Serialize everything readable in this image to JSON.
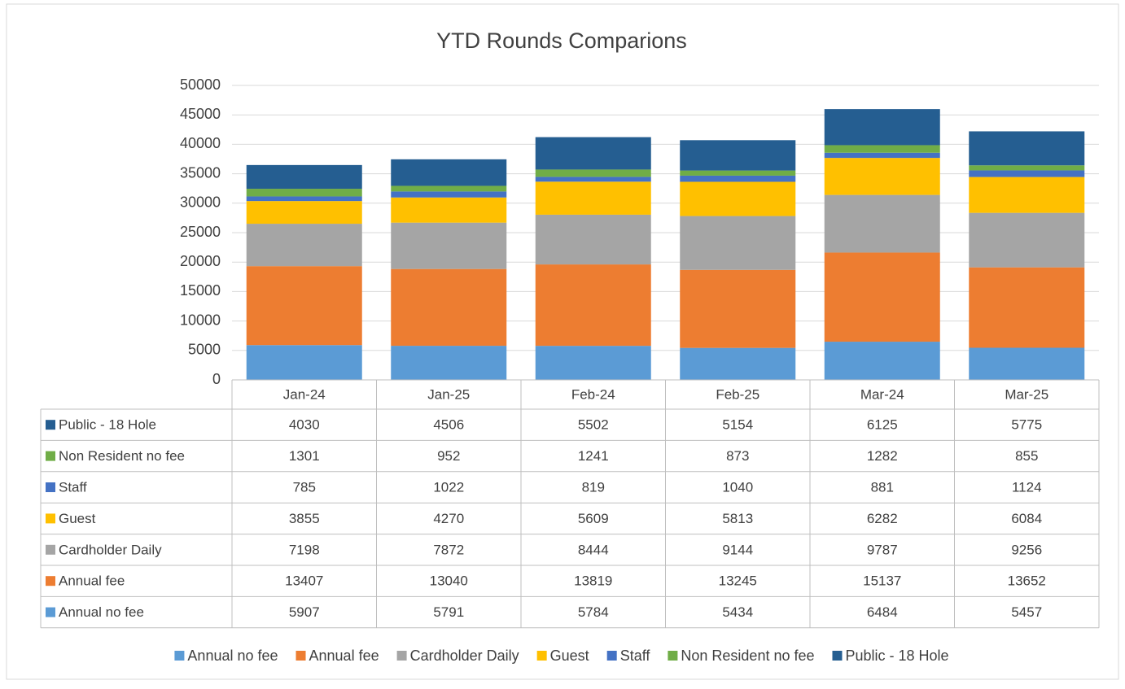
{
  "chart_data": {
    "type": "bar",
    "stacked": true,
    "title": "YTD Rounds Comparions",
    "categories": [
      "Jan-24",
      "Jan-25",
      "Feb-24",
      "Feb-25",
      "Mar-24",
      "Mar-25"
    ],
    "series": [
      {
        "name": "Annual no fee",
        "color": "#5b9bd5",
        "values": [
          5907,
          5791,
          5784,
          5434,
          6484,
          5457
        ]
      },
      {
        "name": "Annual fee",
        "color": "#ed7d31",
        "values": [
          13407,
          13040,
          13819,
          13245,
          15137,
          13652
        ]
      },
      {
        "name": "Cardholder Daily",
        "color": "#a5a5a5",
        "values": [
          7198,
          7872,
          8444,
          9144,
          9787,
          9256
        ]
      },
      {
        "name": "Guest",
        "color": "#ffc000",
        "values": [
          3855,
          4270,
          5609,
          5813,
          6282,
          6084
        ]
      },
      {
        "name": "Staff",
        "color": "#4472c4",
        "values": [
          785,
          1022,
          819,
          1040,
          881,
          1124
        ]
      },
      {
        "name": "Non Resident no fee",
        "color": "#70ad47",
        "values": [
          1301,
          952,
          1241,
          873,
          1282,
          855
        ]
      },
      {
        "name": "Public - 18 Hole",
        "color": "#255e91",
        "values": [
          4030,
          4506,
          5502,
          5154,
          6125,
          5775
        ]
      }
    ],
    "ylim": [
      0,
      50000
    ],
    "yticks": [
      0,
      5000,
      10000,
      15000,
      20000,
      25000,
      30000,
      35000,
      40000,
      45000,
      50000
    ],
    "grid": true,
    "data_table": true,
    "legend": "bottom"
  }
}
